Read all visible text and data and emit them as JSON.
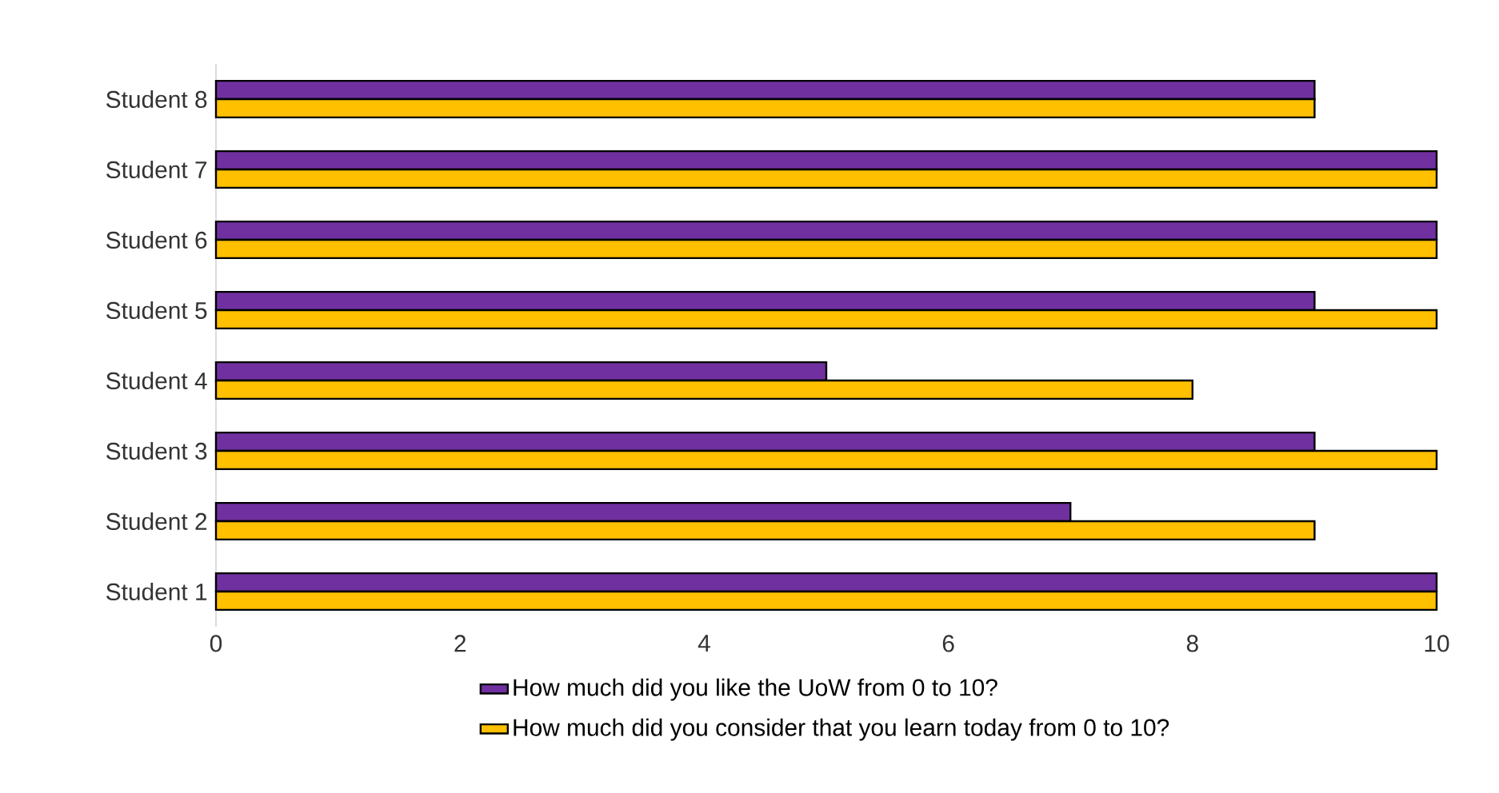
{
  "chart_data": {
    "type": "bar",
    "orientation": "horizontal",
    "categories": [
      "Student 8",
      "Student 7",
      "Student 6",
      "Student 5",
      "Student 4",
      "Student 3",
      "Student 2",
      "Student 1"
    ],
    "series": [
      {
        "name": "How much did you like the UoW from 0 to 10?",
        "color": "#7030a0",
        "values": [
          9,
          10,
          10,
          9,
          5,
          9,
          7,
          10
        ]
      },
      {
        "name": "How much did you consider that you learn today from 0 to 10?",
        "color": "#ffc000",
        "values": [
          9,
          10,
          10,
          10,
          8,
          10,
          9,
          10
        ]
      }
    ],
    "xlim": [
      0,
      10
    ],
    "xticks": [
      0,
      2,
      4,
      6,
      8,
      10
    ],
    "grid": false,
    "legend": "bottom"
  }
}
